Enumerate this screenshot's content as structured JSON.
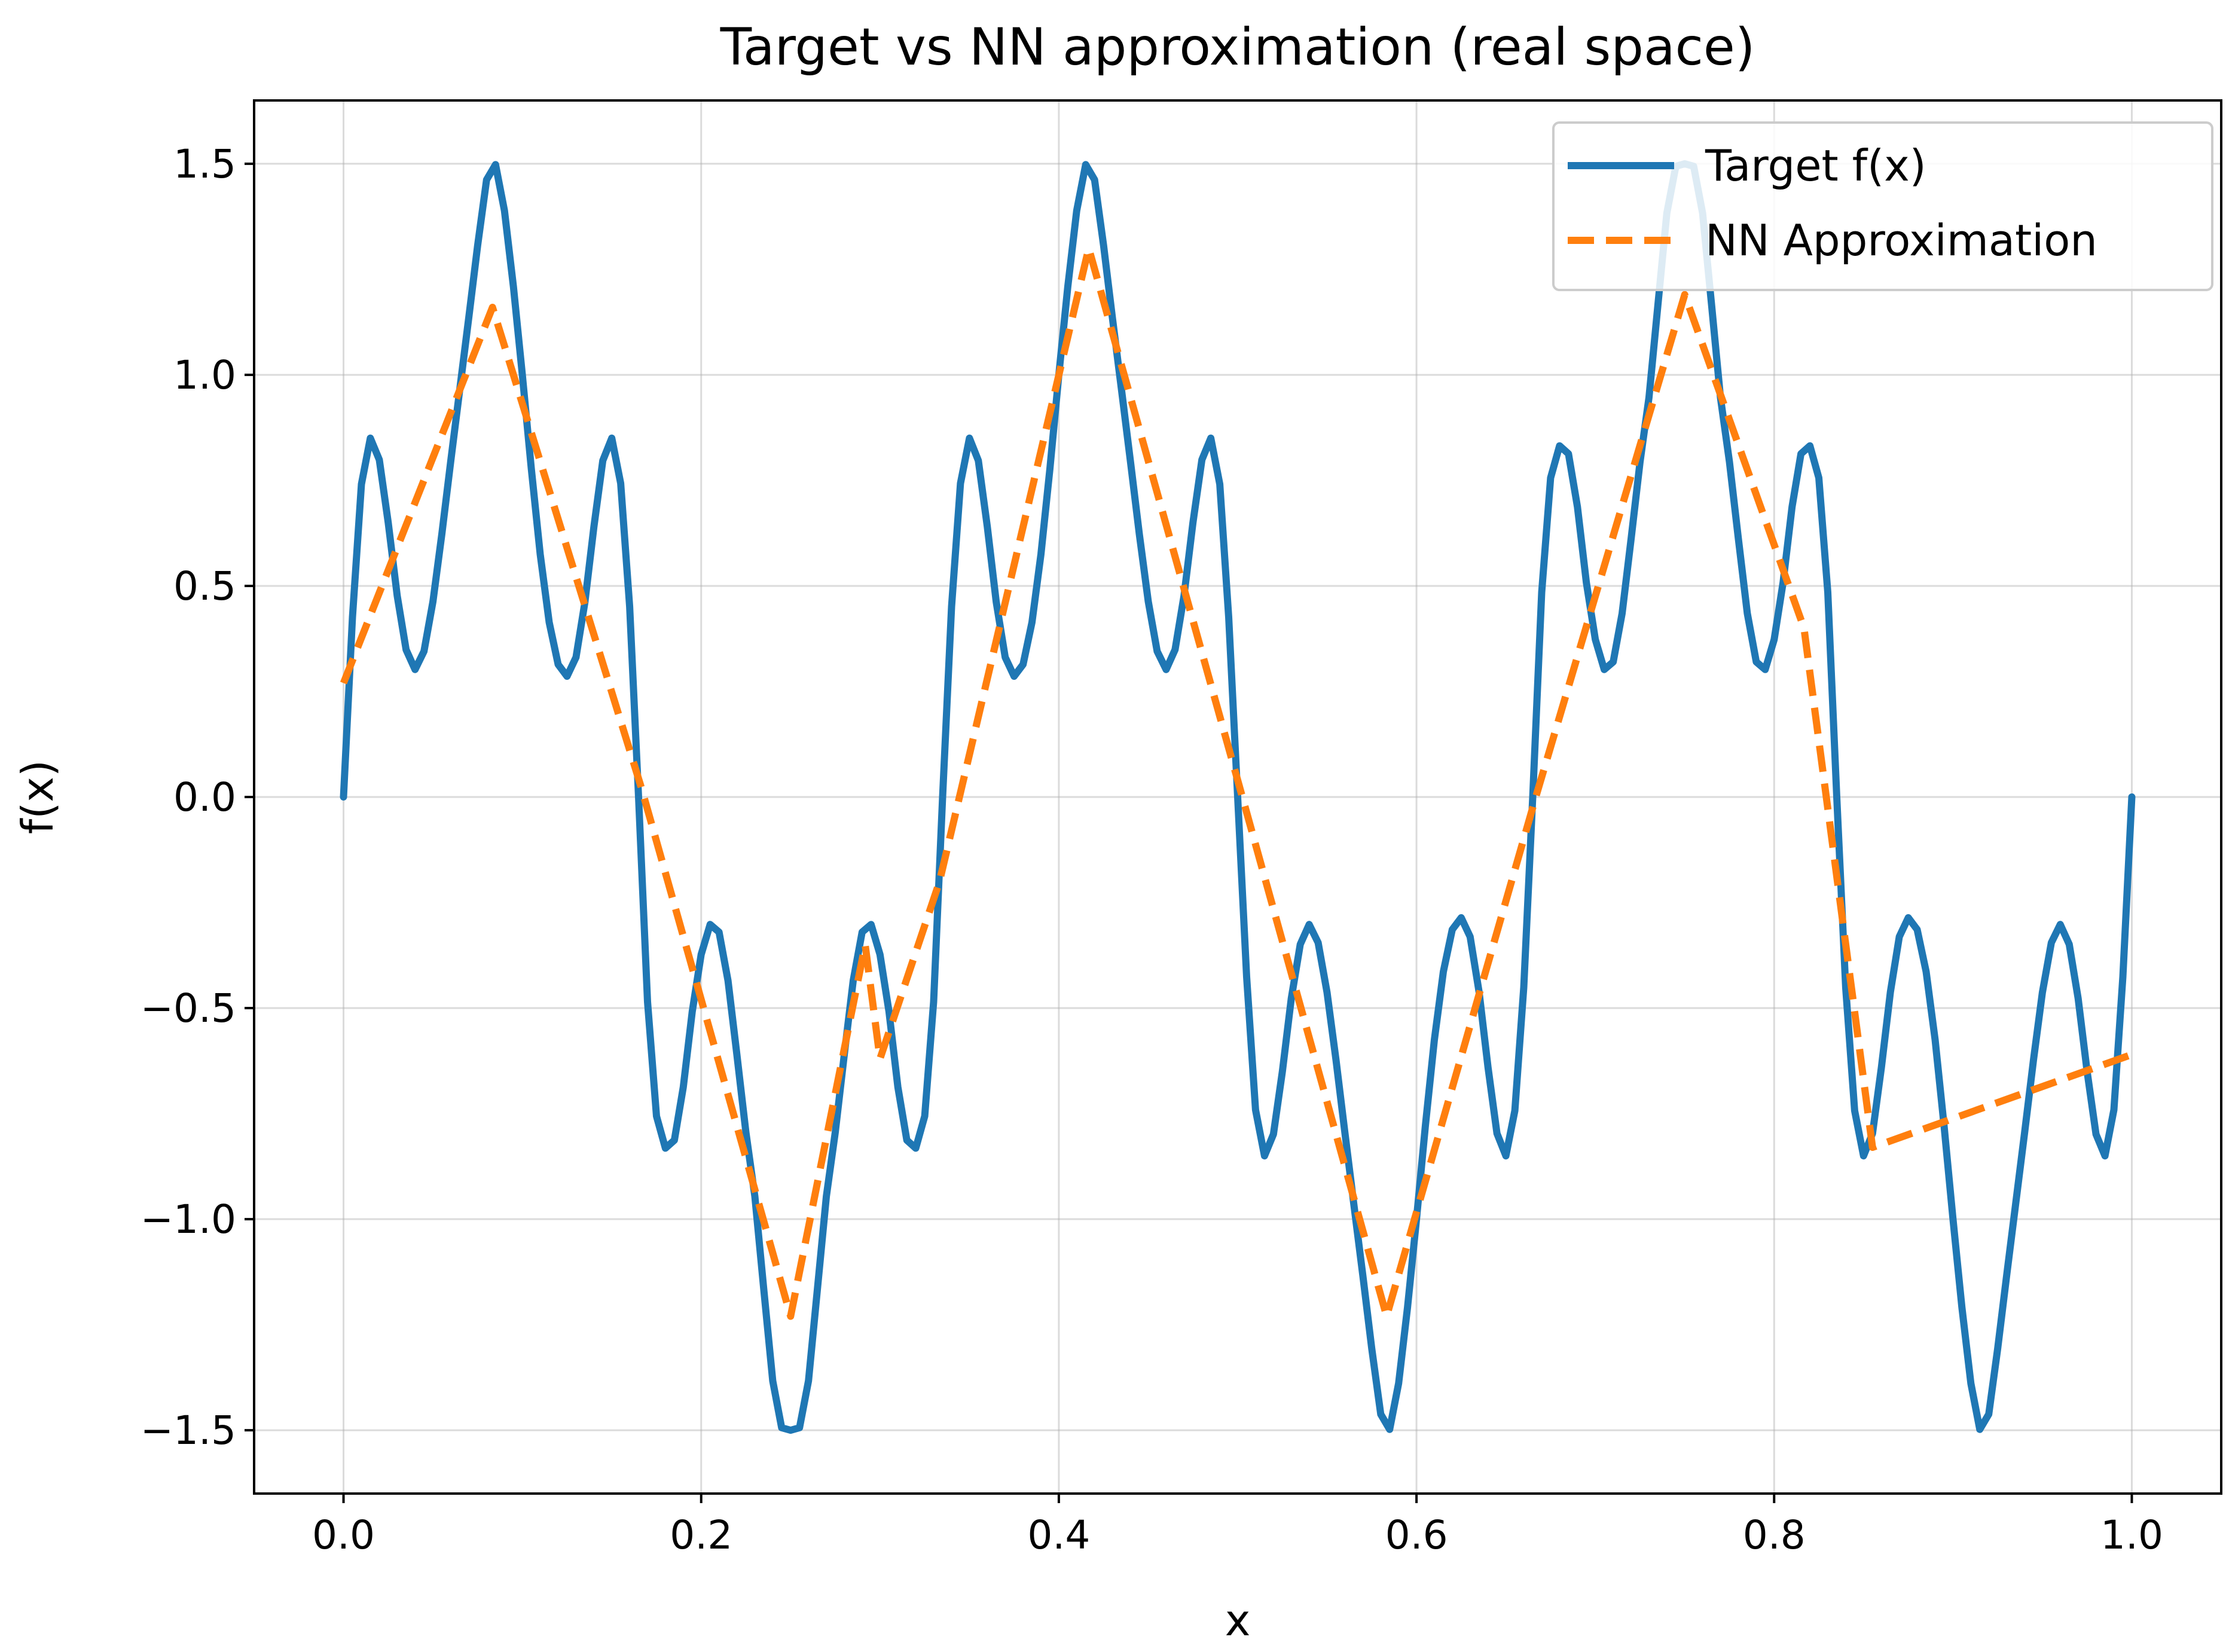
{
  "chart_data": {
    "type": "line",
    "title": "Target vs NN approximation (real space)",
    "xlabel": "x",
    "ylabel": "f(x)",
    "xlim": [
      -0.05,
      1.05
    ],
    "ylim": [
      -1.65,
      1.65
    ],
    "xticks": [
      0.0,
      0.2,
      0.4,
      0.6,
      0.8,
      1.0
    ],
    "xtick_labels": [
      "0.0",
      "0.2",
      "0.4",
      "0.6",
      "0.8",
      "1.0"
    ],
    "yticks": [
      1.5,
      1.0,
      0.5,
      0.0,
      -0.5,
      -1.0,
      -1.5
    ],
    "ytick_labels": [
      "1.5",
      "1.0",
      "0.5",
      "0.0",
      "−0.5",
      "−1.0",
      "−1.5"
    ],
    "grid": true,
    "legend_position": "top-right",
    "series": [
      {
        "name": "Target f(x)",
        "style": "solid",
        "color": "#1f77b4",
        "x": [
          0.0,
          0.005,
          0.01,
          0.015,
          0.02,
          0.025,
          0.03,
          0.035,
          0.04,
          0.045,
          0.05,
          0.055,
          0.06,
          0.065,
          0.07,
          0.075,
          0.08,
          0.085,
          0.09,
          0.095,
          0.1,
          0.105,
          0.11,
          0.115,
          0.12,
          0.125,
          0.13,
          0.135,
          0.14,
          0.145,
          0.15,
          0.155,
          0.16,
          0.165,
          0.17,
          0.175,
          0.18,
          0.185,
          0.19,
          0.195,
          0.2,
          0.205,
          0.21,
          0.215,
          0.22,
          0.225,
          0.23,
          0.235,
          0.24,
          0.245,
          0.25,
          0.255,
          0.26,
          0.265,
          0.27,
          0.275,
          0.28,
          0.285,
          0.29,
          0.295,
          0.3,
          0.305,
          0.31,
          0.315,
          0.32,
          0.325,
          0.33,
          0.335,
          0.34,
          0.345,
          0.35,
          0.355,
          0.36,
          0.365,
          0.37,
          0.375,
          0.38,
          0.385,
          0.39,
          0.395,
          0.4,
          0.405,
          0.41,
          0.415,
          0.42,
          0.425,
          0.43,
          0.435,
          0.44,
          0.445,
          0.45,
          0.455,
          0.46,
          0.465,
          0.47,
          0.475,
          0.48,
          0.485,
          0.49,
          0.495,
          0.5,
          0.505,
          0.51,
          0.515,
          0.52,
          0.525,
          0.53,
          0.535,
          0.54,
          0.545,
          0.55,
          0.555,
          0.56,
          0.565,
          0.57,
          0.575,
          0.58,
          0.585,
          0.59,
          0.595,
          0.6,
          0.605,
          0.61,
          0.615,
          0.62,
          0.625,
          0.63,
          0.635,
          0.64,
          0.645,
          0.65,
          0.655,
          0.66,
          0.665,
          0.67,
          0.675,
          0.68,
          0.685,
          0.69,
          0.695,
          0.7,
          0.705,
          0.71,
          0.715,
          0.72,
          0.725,
          0.73,
          0.735,
          0.74,
          0.745,
          0.75,
          0.755,
          0.76,
          0.765,
          0.77,
          0.775,
          0.78,
          0.785,
          0.79,
          0.795,
          0.8,
          0.805,
          0.81,
          0.815,
          0.82,
          0.825,
          0.83,
          0.835,
          0.84,
          0.845,
          0.85,
          0.855,
          0.86,
          0.865,
          0.87,
          0.875,
          0.88,
          0.885,
          0.89,
          0.895,
          0.9,
          0.905,
          0.91,
          0.915,
          0.92,
          0.925,
          0.93,
          0.935,
          0.94,
          0.945,
          0.95,
          0.955,
          0.96,
          0.965,
          0.97,
          0.975,
          0.98,
          0.985,
          0.99,
          0.995,
          1.0
        ],
        "y": [
          0.0,
          0.426,
          0.741,
          0.85,
          0.799,
          0.65,
          0.477,
          0.349,
          0.302,
          0.345,
          0.463,
          0.623,
          0.797,
          0.966,
          1.134,
          1.307,
          1.462,
          1.498,
          1.389,
          1.209,
          1.0,
          0.778,
          0.575,
          0.414,
          0.314,
          0.286,
          0.331,
          0.462,
          0.64,
          0.797,
          0.85,
          0.743,
          0.451,
          0.0,
          -0.485,
          -0.756,
          -0.832,
          -0.813,
          -0.687,
          -0.508,
          -0.373,
          -0.302,
          -0.32,
          -0.435,
          -0.611,
          -0.794,
          -0.946,
          -1.166,
          -1.383,
          -1.494,
          -1.5,
          -1.494,
          -1.383,
          -1.166,
          -0.946,
          -0.794,
          -0.611,
          -0.435,
          -0.32,
          -0.302,
          -0.373,
          -0.508,
          -0.687,
          -0.813,
          -0.832,
          -0.756,
          -0.485,
          0.0,
          0.451,
          0.743,
          0.85,
          0.797,
          0.64,
          0.462,
          0.331,
          0.286,
          0.314,
          0.414,
          0.575,
          0.778,
          1.0,
          1.209,
          1.389,
          1.498,
          1.462,
          1.307,
          1.134,
          0.966,
          0.797,
          0.623,
          0.463,
          0.345,
          0.302,
          0.349,
          0.477,
          0.65,
          0.799,
          0.85,
          0.741,
          0.426,
          0.0,
          -0.426,
          -0.741,
          -0.85,
          -0.799,
          -0.65,
          -0.477,
          -0.349,
          -0.302,
          -0.345,
          -0.463,
          -0.623,
          -0.797,
          -0.966,
          -1.134,
          -1.307,
          -1.462,
          -1.498,
          -1.389,
          -1.209,
          -1.0,
          -0.778,
          -0.575,
          -0.414,
          -0.314,
          -0.286,
          -0.331,
          -0.462,
          -0.64,
          -0.797,
          -0.85,
          -0.743,
          -0.451,
          0.0,
          0.485,
          0.756,
          0.832,
          0.813,
          0.687,
          0.508,
          0.373,
          0.302,
          0.32,
          0.435,
          0.611,
          0.794,
          0.946,
          1.166,
          1.383,
          1.494,
          1.5,
          1.494,
          1.383,
          1.166,
          0.946,
          0.794,
          0.611,
          0.435,
          0.32,
          0.302,
          0.373,
          0.508,
          0.687,
          0.813,
          0.832,
          0.756,
          0.485,
          0.0,
          -0.451,
          -0.743,
          -0.85,
          -0.797,
          -0.64,
          -0.462,
          -0.331,
          -0.286,
          -0.314,
          -0.414,
          -0.575,
          -0.778,
          -1.0,
          -1.209,
          -1.389,
          -1.498,
          -1.462,
          -1.307,
          -1.134,
          -0.966,
          -0.797,
          -0.623,
          -0.463,
          -0.345,
          -0.302,
          -0.349,
          -0.477,
          -0.65,
          -0.799,
          -0.85,
          -0.741,
          -0.426,
          0.0
        ]
      },
      {
        "name": "NN Approximation",
        "style": "dashed",
        "color": "#ff7f0e",
        "x": [
          0.0,
          0.0833,
          0.1667,
          0.25,
          0.2917,
          0.3,
          0.3333,
          0.4167,
          0.5,
          0.5833,
          0.6667,
          0.75,
          0.8167,
          0.855,
          1.0
        ],
        "y": [
          0.27,
          1.16,
          0.02,
          -1.23,
          -0.35,
          -0.62,
          -0.2,
          1.3,
          0.04,
          -1.23,
          0.0,
          1.19,
          0.4,
          -0.83,
          -0.61
        ]
      }
    ]
  }
}
